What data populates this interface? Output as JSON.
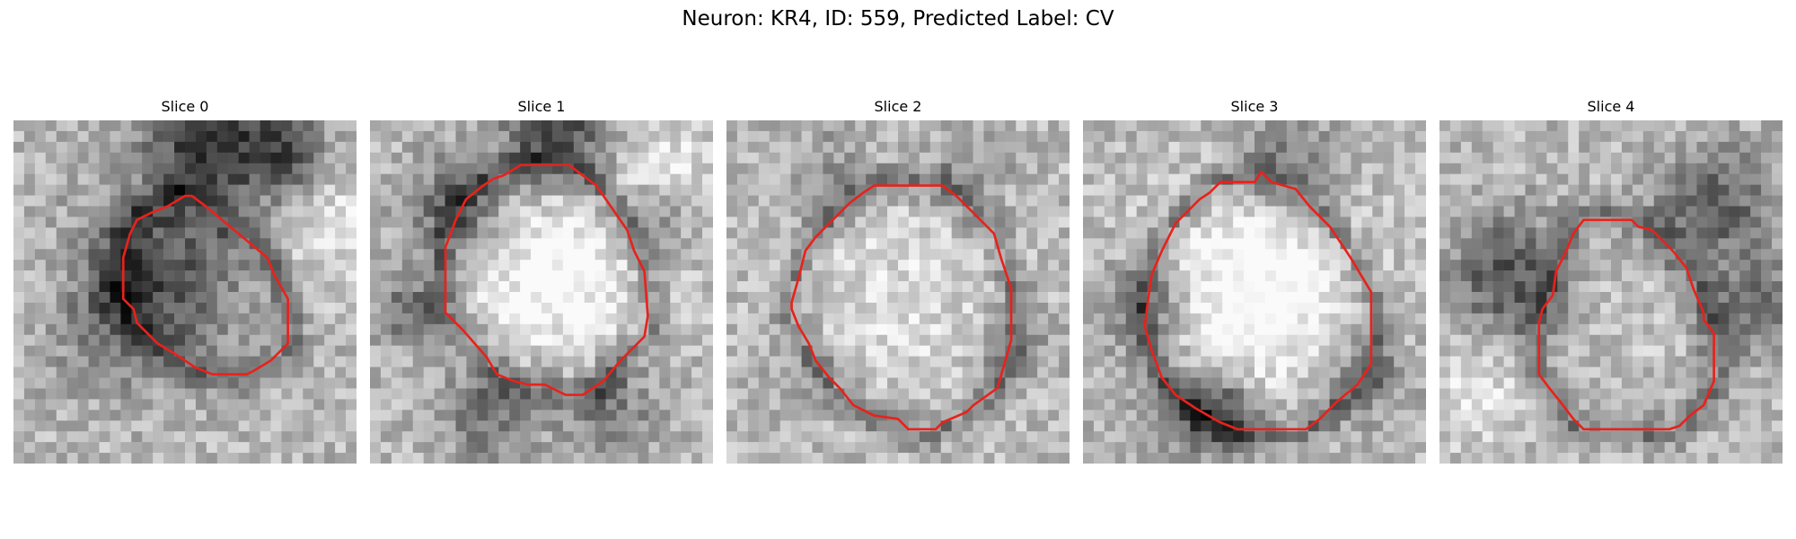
{
  "figure": {
    "title": "Neuron: KR4, ID: 559, Predicted Label: CV"
  },
  "colors": {
    "contour": "#e8221c",
    "background": "#ffffff"
  },
  "panels": [
    {
      "title": "Slice 0",
      "seed": 11,
      "spots": [
        [
          0.55,
          0.05,
          0.12,
          -0.45
        ],
        [
          0.78,
          0.1,
          0.1,
          -0.4
        ],
        [
          0.45,
          0.42,
          0.18,
          -0.3
        ],
        [
          0.3,
          0.55,
          0.15,
          -0.25
        ],
        [
          0.92,
          0.3,
          0.12,
          0.2
        ],
        [
          0.1,
          0.45,
          0.1,
          0.1
        ]
      ],
      "contour": [
        [
          0.52,
          0.22
        ],
        [
          0.56,
          0.25
        ],
        [
          0.74,
          0.4
        ],
        [
          0.76,
          0.45
        ],
        [
          0.8,
          0.52
        ],
        [
          0.8,
          0.65
        ],
        [
          0.75,
          0.7
        ],
        [
          0.7,
          0.73
        ],
        [
          0.68,
          0.74
        ],
        [
          0.58,
          0.74
        ],
        [
          0.53,
          0.72
        ],
        [
          0.47,
          0.68
        ],
        [
          0.42,
          0.65
        ],
        [
          0.36,
          0.59
        ],
        [
          0.35,
          0.55
        ],
        [
          0.32,
          0.52
        ],
        [
          0.32,
          0.4
        ],
        [
          0.34,
          0.33
        ],
        [
          0.36,
          0.29
        ],
        [
          0.38,
          0.28
        ],
        [
          0.4,
          0.27
        ],
        [
          0.45,
          0.25
        ],
        [
          0.5,
          0.22
        ]
      ]
    },
    {
      "title": "Slice 1",
      "seed": 23,
      "spots": [
        [
          0.55,
          0.03,
          0.12,
          -0.45
        ],
        [
          0.25,
          0.25,
          0.1,
          -0.35
        ],
        [
          0.82,
          0.28,
          0.08,
          -0.3
        ],
        [
          0.12,
          0.55,
          0.08,
          -0.3
        ],
        [
          0.55,
          0.45,
          0.2,
          0.3
        ],
        [
          0.35,
          0.85,
          0.1,
          -0.3
        ],
        [
          0.7,
          0.85,
          0.1,
          -0.25
        ],
        [
          0.85,
          0.15,
          0.12,
          0.2
        ]
      ],
      "contour": [
        [
          0.44,
          0.13
        ],
        [
          0.58,
          0.13
        ],
        [
          0.66,
          0.19
        ],
        [
          0.75,
          0.32
        ],
        [
          0.77,
          0.38
        ],
        [
          0.8,
          0.44
        ],
        [
          0.81,
          0.57
        ],
        [
          0.8,
          0.63
        ],
        [
          0.73,
          0.7
        ],
        [
          0.68,
          0.76
        ],
        [
          0.62,
          0.8
        ],
        [
          0.57,
          0.8
        ],
        [
          0.51,
          0.77
        ],
        [
          0.46,
          0.77
        ],
        [
          0.42,
          0.76
        ],
        [
          0.37,
          0.74
        ],
        [
          0.34,
          0.69
        ],
        [
          0.27,
          0.61
        ],
        [
          0.22,
          0.56
        ],
        [
          0.22,
          0.37
        ],
        [
          0.25,
          0.29
        ],
        [
          0.28,
          0.23
        ],
        [
          0.33,
          0.19
        ],
        [
          0.36,
          0.17
        ],
        [
          0.39,
          0.16
        ]
      ]
    },
    {
      "title": "Slice 2",
      "seed": 37,
      "spots": [
        [
          0.5,
          0.5,
          0.25,
          0.15
        ],
        [
          0.3,
          0.15,
          0.1,
          -0.15
        ],
        [
          0.7,
          0.15,
          0.1,
          -0.15
        ],
        [
          0.85,
          0.65,
          0.08,
          -0.15
        ],
        [
          0.2,
          0.75,
          0.1,
          -0.1
        ]
      ],
      "contour": [
        [
          0.43,
          0.19
        ],
        [
          0.63,
          0.19
        ],
        [
          0.67,
          0.22
        ],
        [
          0.73,
          0.28
        ],
        [
          0.78,
          0.33
        ],
        [
          0.8,
          0.4
        ],
        [
          0.83,
          0.49
        ],
        [
          0.83,
          0.64
        ],
        [
          0.81,
          0.71
        ],
        [
          0.79,
          0.78
        ],
        [
          0.72,
          0.83
        ],
        [
          0.7,
          0.85
        ],
        [
          0.63,
          0.88
        ],
        [
          0.61,
          0.9
        ],
        [
          0.53,
          0.9
        ],
        [
          0.5,
          0.87
        ],
        [
          0.43,
          0.86
        ],
        [
          0.37,
          0.83
        ],
        [
          0.33,
          0.78
        ],
        [
          0.3,
          0.75
        ],
        [
          0.26,
          0.7
        ],
        [
          0.24,
          0.65
        ],
        [
          0.21,
          0.6
        ],
        [
          0.19,
          0.55
        ],
        [
          0.19,
          0.53
        ],
        [
          0.21,
          0.46
        ],
        [
          0.23,
          0.38
        ],
        [
          0.26,
          0.34
        ],
        [
          0.29,
          0.31
        ],
        [
          0.32,
          0.28
        ],
        [
          0.36,
          0.24
        ],
        [
          0.4,
          0.21
        ]
      ]
    },
    {
      "title": "Slice 3",
      "seed": 53,
      "spots": [
        [
          0.5,
          0.52,
          0.22,
          0.35
        ],
        [
          0.3,
          0.85,
          0.1,
          -0.25
        ],
        [
          0.42,
          0.85,
          0.08,
          -0.35
        ],
        [
          0.8,
          0.75,
          0.1,
          -0.25
        ],
        [
          0.18,
          0.55,
          0.1,
          -0.3
        ],
        [
          0.6,
          0.12,
          0.1,
          -0.25
        ]
      ],
      "contour": [
        [
          0.4,
          0.18
        ],
        [
          0.5,
          0.18
        ],
        [
          0.52,
          0.15
        ],
        [
          0.55,
          0.18
        ],
        [
          0.62,
          0.2
        ],
        [
          0.66,
          0.25
        ],
        [
          0.72,
          0.31
        ],
        [
          0.78,
          0.4
        ],
        [
          0.84,
          0.5
        ],
        [
          0.84,
          0.71
        ],
        [
          0.8,
          0.77
        ],
        [
          0.74,
          0.82
        ],
        [
          0.69,
          0.87
        ],
        [
          0.65,
          0.9
        ],
        [
          0.45,
          0.9
        ],
        [
          0.4,
          0.88
        ],
        [
          0.33,
          0.84
        ],
        [
          0.27,
          0.8
        ],
        [
          0.23,
          0.75
        ],
        [
          0.2,
          0.67
        ],
        [
          0.18,
          0.6
        ],
        [
          0.19,
          0.52
        ],
        [
          0.2,
          0.45
        ],
        [
          0.23,
          0.38
        ],
        [
          0.27,
          0.3
        ],
        [
          0.3,
          0.27
        ],
        [
          0.34,
          0.23
        ],
        [
          0.37,
          0.21
        ]
      ]
    },
    {
      "title": "Slice 4",
      "seed": 71,
      "spots": [
        [
          0.2,
          0.45,
          0.12,
          -0.4
        ],
        [
          0.8,
          0.25,
          0.12,
          -0.35
        ],
        [
          0.9,
          0.55,
          0.1,
          -0.3
        ],
        [
          0.55,
          0.55,
          0.2,
          0.05
        ],
        [
          0.1,
          0.8,
          0.1,
          0.2
        ]
      ],
      "contour": [
        [
          0.42,
          0.29
        ],
        [
          0.56,
          0.29
        ],
        [
          0.58,
          0.31
        ],
        [
          0.62,
          0.32
        ],
        [
          0.68,
          0.38
        ],
        [
          0.72,
          0.43
        ],
        [
          0.74,
          0.49
        ],
        [
          0.77,
          0.56
        ],
        [
          0.77,
          0.58
        ],
        [
          0.8,
          0.62
        ],
        [
          0.8,
          0.76
        ],
        [
          0.77,
          0.83
        ],
        [
          0.73,
          0.86
        ],
        [
          0.7,
          0.89
        ],
        [
          0.67,
          0.9
        ],
        [
          0.42,
          0.9
        ],
        [
          0.39,
          0.87
        ],
        [
          0.36,
          0.83
        ],
        [
          0.32,
          0.78
        ],
        [
          0.29,
          0.74
        ],
        [
          0.29,
          0.59
        ],
        [
          0.3,
          0.55
        ],
        [
          0.33,
          0.51
        ],
        [
          0.34,
          0.44
        ],
        [
          0.37,
          0.38
        ],
        [
          0.39,
          0.33
        ]
      ]
    }
  ]
}
